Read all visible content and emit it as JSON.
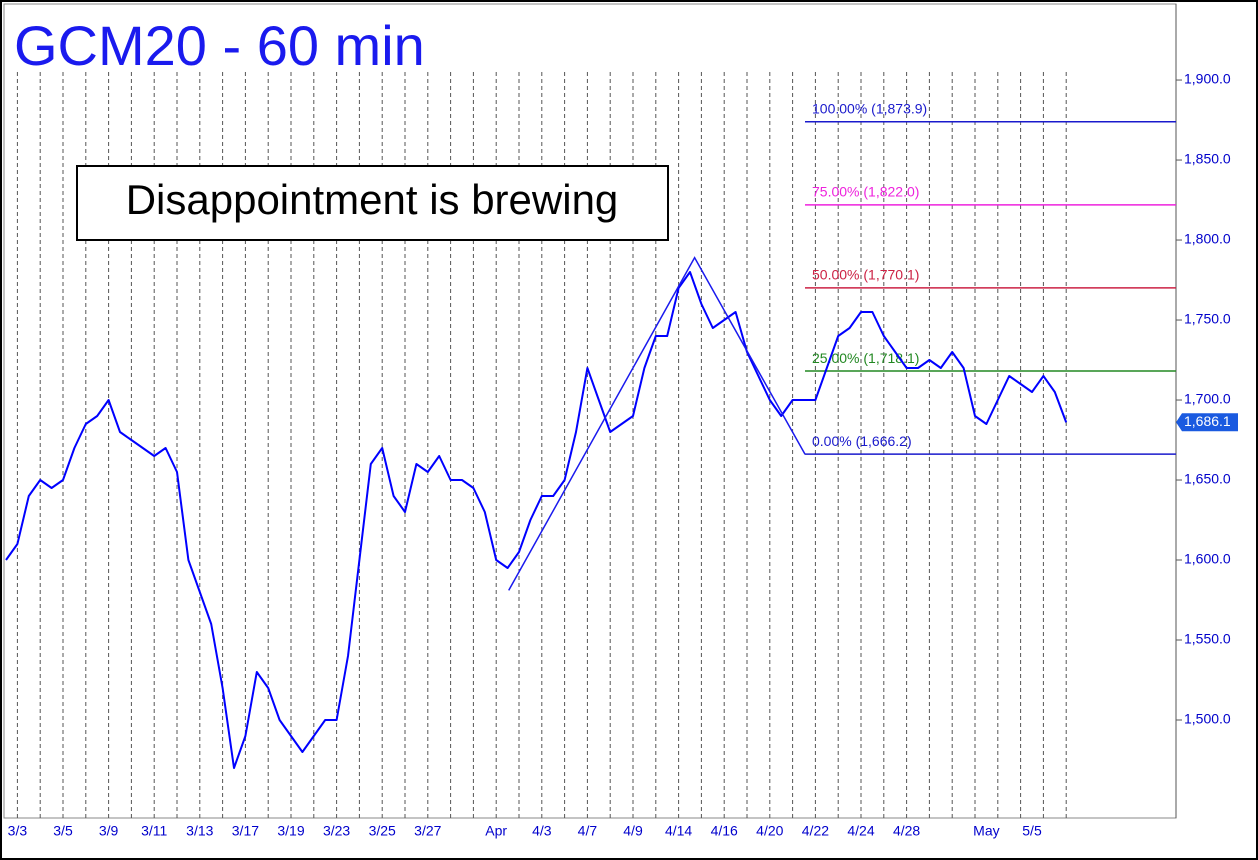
{
  "chart_data": {
    "type": "line",
    "title": "GCM20 - 60 min",
    "annotation": "Disappointment is brewing",
    "categories": [
      null,
      "3/3",
      null,
      null,
      null,
      "3/5",
      null,
      null,
      null,
      "3/9",
      null,
      null,
      null,
      "3/11",
      null,
      null,
      null,
      "3/13",
      null,
      null,
      null,
      "3/17",
      null,
      null,
      null,
      "3/19",
      null,
      null,
      null,
      "3/23",
      null,
      null,
      null,
      "3/25",
      null,
      null,
      null,
      "3/27",
      null,
      null,
      null,
      null,
      null,
      "Apr",
      null,
      null,
      null,
      "4/3",
      null,
      null,
      null,
      "4/7",
      null,
      null,
      null,
      "4/9",
      null,
      null,
      null,
      "4/14",
      null,
      null,
      null,
      "4/16",
      null,
      null,
      null,
      "4/20",
      null,
      null,
      null,
      "4/22",
      null,
      null,
      null,
      "4/24",
      null,
      null,
      null,
      "4/28",
      null,
      null,
      null,
      null,
      null,
      null,
      "May",
      null,
      null,
      null,
      "5/5",
      null,
      null,
      null
    ],
    "values": [
      1600,
      1610,
      1640,
      1650,
      1645,
      1650,
      1670,
      1685,
      1690,
      1700,
      1680,
      1675,
      1670,
      1665,
      1670,
      1655,
      1600,
      1580,
      1560,
      1520,
      1470,
      1490,
      1530,
      1520,
      1500,
      1490,
      1480,
      1490,
      1500,
      1500,
      1540,
      1600,
      1660,
      1670,
      1640,
      1630,
      1660,
      1655,
      1665,
      1650,
      1650,
      1645,
      1630,
      1600,
      1595,
      1605,
      1625,
      1640,
      1640,
      1650,
      1680,
      1720,
      1700,
      1680,
      1685,
      1690,
      1720,
      1740,
      1740,
      1770,
      1780,
      1760,
      1745,
      1750,
      1755,
      1730,
      1715,
      1700,
      1690,
      1700,
      1700,
      1700,
      1720,
      1740,
      1745,
      1755,
      1755,
      1740,
      1730,
      1720,
      1720,
      1725,
      1720,
      1730,
      1720,
      1690,
      1685,
      1700,
      1715,
      1710,
      1705,
      1715,
      1705,
      1686
    ],
    "color": "#0000ff",
    "ylim": [
      1438.75,
      1946.9
    ],
    "yticks": [
      {
        "value": 1500,
        "label": "1,500.0"
      },
      {
        "value": 1550,
        "label": "1,550.0"
      },
      {
        "value": 1600,
        "label": "1,600.0"
      },
      {
        "value": 1650,
        "label": "1,650.0"
      },
      {
        "value": 1700,
        "label": "1,700.0"
      },
      {
        "value": 1750,
        "label": "1,750.0"
      },
      {
        "value": 1800,
        "label": "1,800.0"
      },
      {
        "value": 1850,
        "label": "1,850.0"
      },
      {
        "value": 1900,
        "label": "1,900.0"
      }
    ],
    "levels": [
      {
        "label": "100.00% (1,873.9)",
        "value": 1873.9,
        "color": "#1a1acc"
      },
      {
        "label": "75.00% (1,822.0)",
        "value": 1822.0,
        "color": "#ee22dd"
      },
      {
        "label": "50.00% (1,770.1)",
        "value": 1770.1,
        "color": "#cc2244"
      },
      {
        "label": "25.00% (1,718.1)",
        "value": 1718.1,
        "color": "#228822"
      },
      {
        "label": "0.00% (1,666.2)",
        "value": 1666.2,
        "color": "#1a1acc"
      }
    ],
    "swing_lines": {
      "x": [
        44.1,
        60.4,
        70.1
      ],
      "y": [
        1581,
        1789,
        1666
      ]
    },
    "last_price": {
      "value": 1686.1,
      "label": "1,686.1"
    }
  }
}
